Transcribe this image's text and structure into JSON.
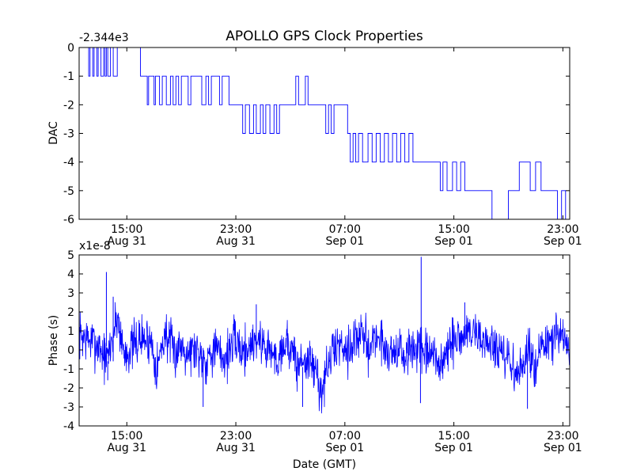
{
  "figure_title": "APOLLO GPS Clock Properties",
  "line_color": "#0000ff",
  "chart_data": [
    {
      "type": "line",
      "name": "dac",
      "ylabel": "DAC",
      "xlabel": "",
      "offset_label": "-2.344e3",
      "ylim": [
        -6,
        0
      ],
      "yticks": [
        0,
        -1,
        -2,
        -3,
        -4,
        -5,
        -6
      ],
      "ytick_labels": [
        "0",
        "-1",
        "-2",
        "-3",
        "-4",
        "-5",
        "-6"
      ],
      "xlim_hours": [
        11.5,
        47.5
      ],
      "xticks": [
        {
          "hour": 15,
          "line1": "15:00",
          "line2": "Aug 31"
        },
        {
          "hour": 23,
          "line1": "23:00",
          "line2": "Aug 31"
        },
        {
          "hour": 31,
          "line1": "07:00",
          "line2": "Sep 01"
        },
        {
          "hour": 39,
          "line1": "15:00",
          "line2": "Sep 01"
        },
        {
          "hour": 47,
          "line1": "23:00",
          "line2": "Sep 01"
        }
      ],
      "x_hours": [
        11.5,
        12.2,
        12.3,
        12.5,
        12.6,
        12.8,
        12.9,
        13.1,
        13.3,
        13.4,
        13.5,
        13.6,
        13.8,
        14.0,
        14.2,
        14.3,
        16.0,
        16.5,
        16.6,
        17.0,
        17.1,
        17.4,
        17.6,
        17.9,
        18.2,
        18.4,
        18.6,
        18.8,
        19.0,
        19.5,
        19.7,
        20.5,
        20.8,
        21.0,
        21.2,
        21.8,
        22.0,
        22.5,
        22.8,
        23.5,
        23.7,
        24.0,
        24.3,
        24.5,
        24.8,
        25.0,
        25.2,
        25.5,
        25.8,
        26.0,
        26.2,
        27.0,
        27.4,
        27.6,
        28.1,
        28.3,
        29.0,
        29.6,
        29.8,
        30.0,
        30.2,
        31.2,
        31.4,
        31.6,
        31.8,
        32.0,
        32.3,
        32.7,
        33.0,
        33.3,
        33.6,
        33.9,
        34.2,
        34.5,
        34.8,
        35.1,
        35.4,
        35.7,
        36.0,
        37.5,
        38.0,
        38.2,
        38.5,
        38.9,
        39.2,
        39.5,
        39.8,
        40.1,
        41.0,
        41.8,
        43.0,
        43.3,
        43.8,
        44.0,
        44.6,
        45.0,
        45.4,
        46.3,
        46.6,
        46.9,
        47.2,
        47.5
      ],
      "values": [
        0,
        -1,
        0,
        -1,
        0,
        -1,
        0,
        -1,
        0,
        -1,
        0,
        -1,
        0,
        -1,
        -1,
        0,
        -1,
        -2,
        -1,
        -2,
        -1,
        -2,
        -1,
        -2,
        -1,
        -2,
        -1,
        -2,
        -1,
        -2,
        -1,
        -2,
        -1,
        -2,
        -1,
        -2,
        -1,
        -2,
        -2,
        -3,
        -2,
        -3,
        -2,
        -3,
        -2,
        -3,
        -2,
        -3,
        -2,
        -3,
        -2,
        -2,
        -1,
        -2,
        -1,
        -2,
        -2,
        -3,
        -2,
        -3,
        -2,
        -3,
        -4,
        -3,
        -4,
        -3,
        -4,
        -3,
        -4,
        -3,
        -4,
        -3,
        -4,
        -3,
        -4,
        -3,
        -4,
        -3,
        -4,
        -4,
        -5,
        -4,
        -5,
        -4,
        -5,
        -4,
        -5,
        -5,
        -5,
        -6,
        -5,
        -5,
        -4,
        -4,
        -5,
        -4,
        -5,
        -5,
        -6,
        -5,
        -6,
        -5
      ]
    },
    {
      "type": "line",
      "name": "phase",
      "ylabel": "Phase (s)",
      "xlabel": "Date (GMT)",
      "offset_label": "x1e-8",
      "ylim": [
        -4,
        5
      ],
      "yticks": [
        5,
        4,
        3,
        2,
        1,
        0,
        -1,
        -2,
        -3,
        -4
      ],
      "ytick_labels": [
        "5",
        "4",
        "3",
        "2",
        "1",
        "0",
        "-1",
        "-2",
        "-3",
        "-4"
      ],
      "xlim_hours": [
        11.5,
        47.5
      ],
      "xticks": [
        {
          "hour": 15,
          "line1": "15:00",
          "line2": "Aug 31"
        },
        {
          "hour": 23,
          "line1": "23:00",
          "line2": "Aug 31"
        },
        {
          "hour": 31,
          "line1": "07:00",
          "line2": "Sep 01"
        },
        {
          "hour": 39,
          "line1": "15:00",
          "line2": "Sep 01"
        },
        {
          "hour": 47,
          "line1": "23:00",
          "line2": "Sep 01"
        }
      ],
      "x_hours": [
        11.5,
        12.0,
        12.5,
        13.0,
        13.5,
        14.0,
        14.3,
        14.8,
        15.2,
        16.0,
        16.8,
        17.2,
        17.8,
        18.5,
        19.0,
        19.6,
        20.0,
        20.8,
        21.3,
        21.8,
        22.2,
        22.6,
        23.0,
        23.5,
        24.0,
        24.5,
        25.0,
        25.5,
        26.0,
        26.5,
        27.0,
        27.5,
        27.9,
        28.3,
        28.8,
        29.3,
        29.8,
        30.3,
        30.8,
        31.3,
        31.8,
        32.3,
        32.8,
        33.3,
        33.8,
        34.3,
        34.8,
        35.3,
        35.8,
        36.3,
        36.8,
        37.3,
        37.7,
        38.0,
        38.5,
        39.0,
        39.4,
        39.8,
        40.2,
        40.6,
        41.0,
        41.5,
        42.0,
        42.5,
        43.0,
        43.4,
        43.8,
        44.3,
        44.8,
        45.3,
        45.8,
        46.3,
        46.8,
        47.2,
        47.5
      ],
      "values": [
        0.8,
        0.6,
        0.4,
        0.2,
        -0.6,
        0.8,
        1.8,
        -0.2,
        0.0,
        0.6,
        0.5,
        -1.0,
        0.9,
        -0.2,
        0.3,
        -0.1,
        0.1,
        -0.6,
        0.1,
        -0.2,
        -0.5,
        0.1,
        0.5,
        -0.1,
        0.2,
        0.6,
        0.3,
        0.0,
        -0.6,
        0.4,
        0.2,
        -0.9,
        -0.5,
        -0.6,
        -1.0,
        -2.2,
        -0.8,
        0.2,
        0.3,
        0.1,
        0.6,
        0.7,
        0.1,
        0.8,
        0.3,
        -0.2,
        0.1,
        -0.4,
        -0.1,
        0.2,
        -0.4,
        -0.3,
        -0.5,
        -0.8,
        -0.2,
        0.4,
        0.6,
        0.8,
        0.9,
        1.0,
        0.5,
        0.4,
        0.1,
        -0.4,
        -0.6,
        -1.0,
        -1.4,
        -0.2,
        -0.6,
        -0.2,
        0.3,
        0.5,
        0.7,
        0.4,
        -0.1
      ],
      "spikes": [
        {
          "hour": 13.5,
          "value": 4.1
        },
        {
          "hour": 13.6,
          "value": -1.6
        },
        {
          "hour": 14.0,
          "value": 2.8
        },
        {
          "hour": 20.6,
          "value": -3.0
        },
        {
          "hour": 24.5,
          "value": 2.4
        },
        {
          "hour": 27.9,
          "value": -3.0
        },
        {
          "hour": 36.6,
          "value": 4.9
        },
        {
          "hour": 36.55,
          "value": -2.8
        },
        {
          "hour": 39.8,
          "value": 2.5
        },
        {
          "hour": 44.4,
          "value": -3.1
        }
      ]
    }
  ]
}
